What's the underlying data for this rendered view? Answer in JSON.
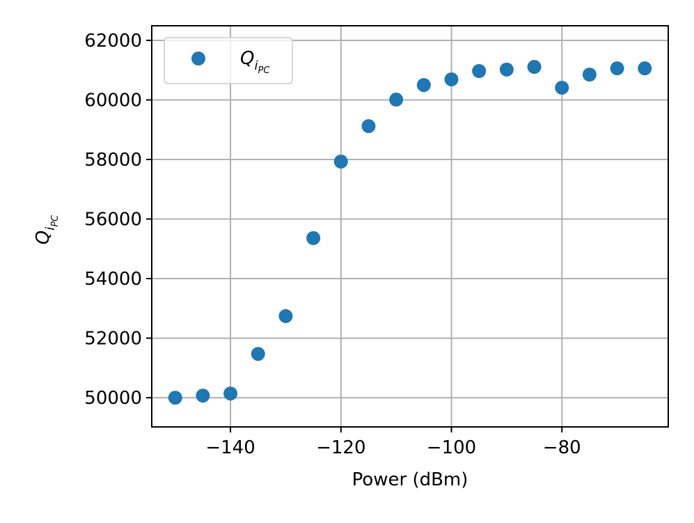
{
  "chart_data": {
    "type": "scatter",
    "xlabel": "Power (dBm)",
    "ylabel": "Q",
    "ylabel_sub": "i",
    "ylabel_subsub": "PC",
    "x": [
      -150,
      -145,
      -140,
      -135,
      -130,
      -125,
      -120,
      -115,
      -110,
      -105,
      -100,
      -95,
      -90,
      -85,
      -80,
      -75,
      -70,
      -65
    ],
    "series": [
      {
        "name": "Q",
        "name_sub": "i",
        "name_subsub": "PC",
        "color": "#1f77b4",
        "values": [
          50000,
          50070,
          50140,
          51470,
          52740,
          55360,
          57930,
          59120,
          60010,
          60500,
          60690,
          60970,
          61020,
          61110,
          60410,
          60850,
          61060,
          61060
        ]
      }
    ],
    "xlim": [
      -154.25,
      -60.75
    ],
    "ylim": [
      49020,
      62490
    ],
    "xticks": [
      {
        "value": -140,
        "label": "−140"
      },
      {
        "value": -120,
        "label": "−120"
      },
      {
        "value": -100,
        "label": "−100"
      },
      {
        "value": -80,
        "label": "−80"
      }
    ],
    "yticks": [
      50000,
      52000,
      54000,
      56000,
      58000,
      60000,
      62000
    ],
    "grid": true,
    "legend": "upper left"
  }
}
